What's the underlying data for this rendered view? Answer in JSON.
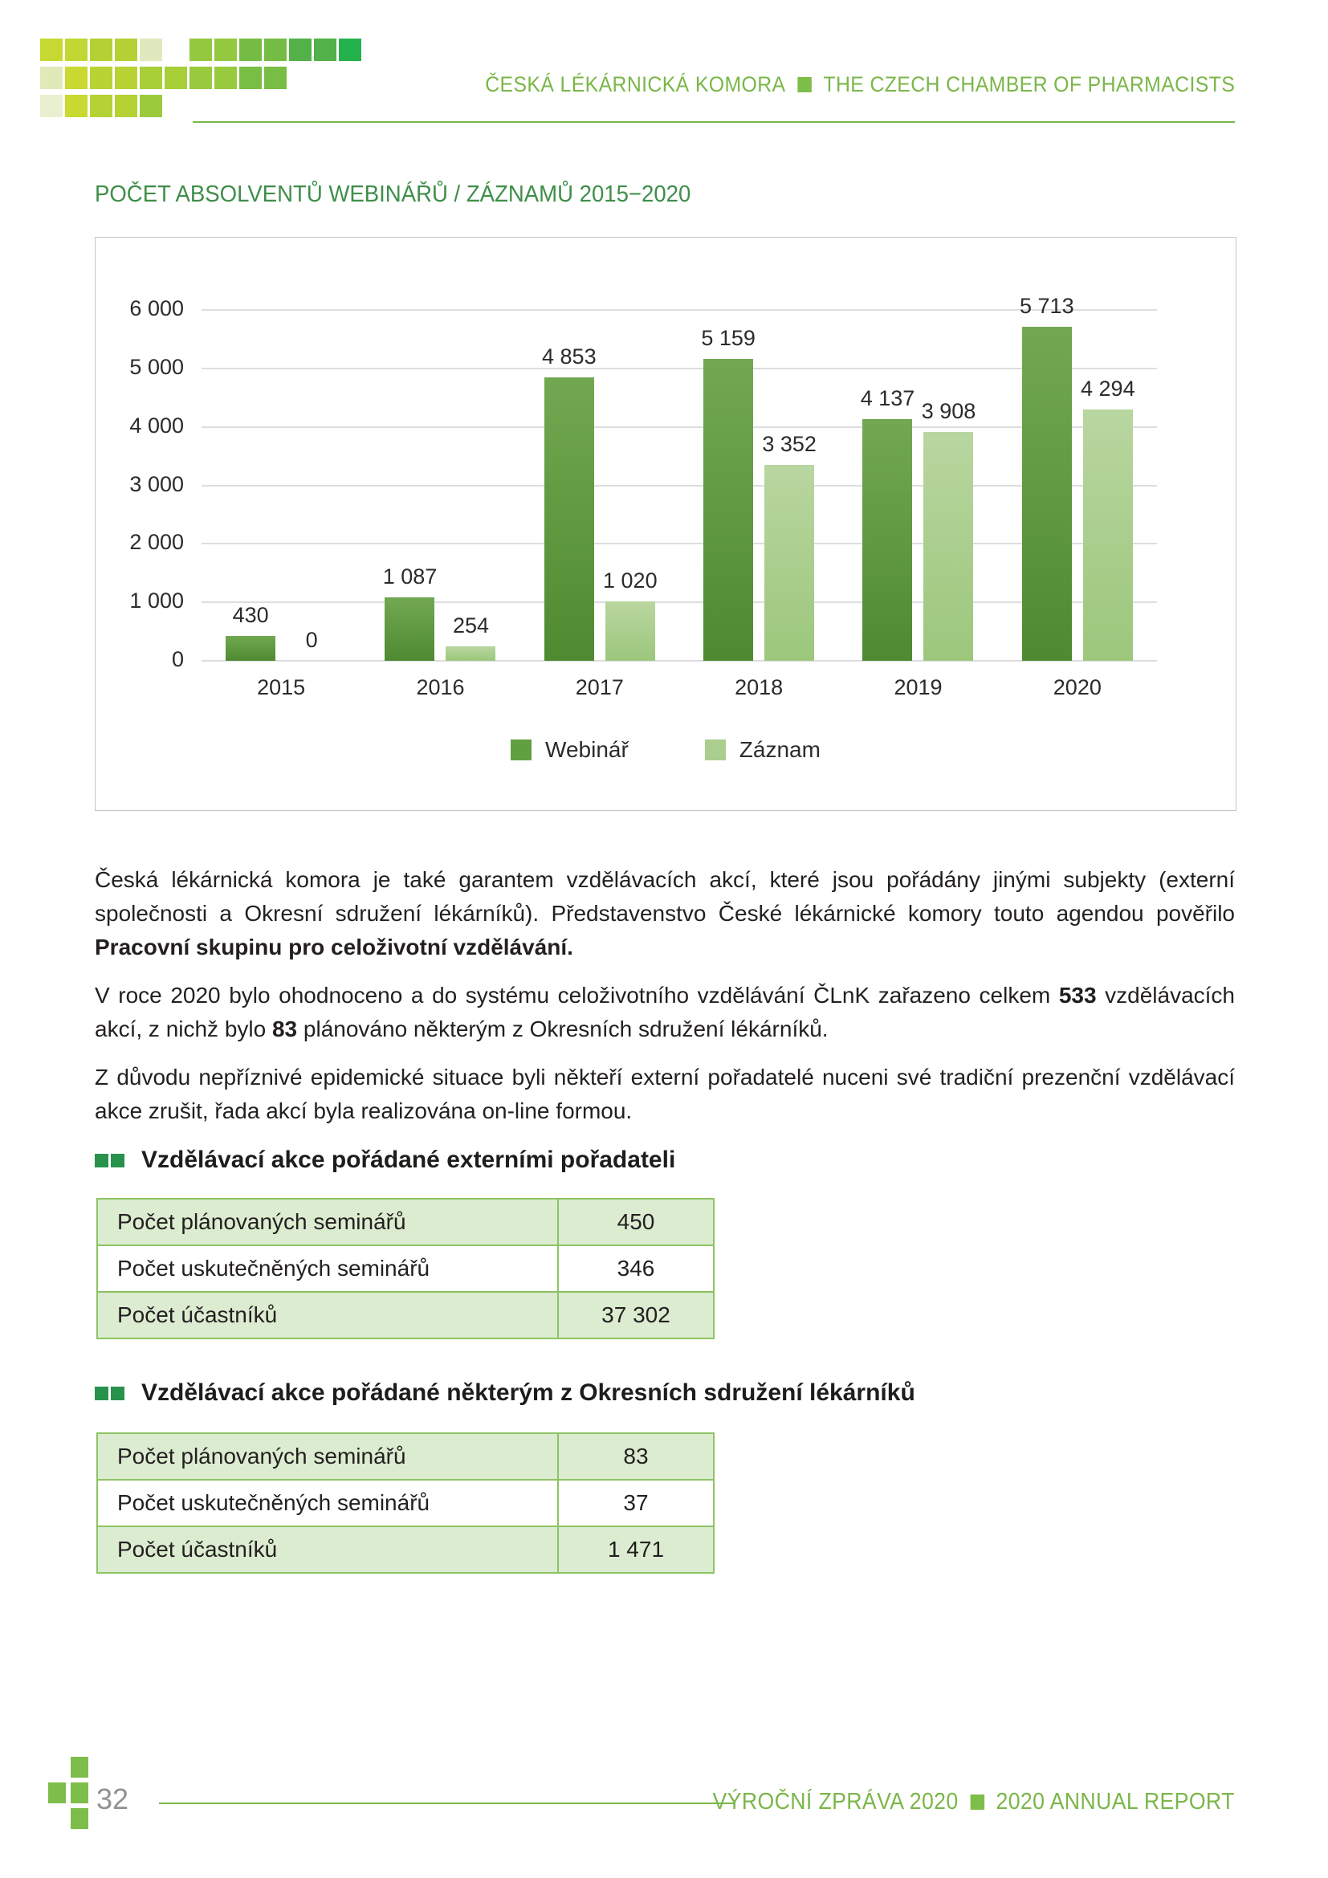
{
  "header": {
    "title_cs": "ČESKÁ LÉKÁRNICKÁ KOMORA",
    "separator": "■",
    "title_en": "THE CZECH CHAMBER OF PHARMACISTS"
  },
  "chart_title": "POČET ABSOLVENTŮ WEBINÁŘŮ / ZÁZNAMŮ 2015−2020",
  "chart_data": {
    "type": "bar",
    "title": "POČET ABSOLVENTŮ WEBINÁŘŮ / ZÁZNAMŮ 2015−2020",
    "categories": [
      "2015",
      "2016",
      "2017",
      "2018",
      "2019",
      "2020"
    ],
    "series": [
      {
        "name": "Webinář",
        "values": [
          430,
          1087,
          4853,
          5159,
          4137,
          5713
        ],
        "labels": [
          "430",
          "1 087",
          "4 853",
          "5 159",
          "4 137",
          "5 713"
        ],
        "color_top": "#72a851",
        "color_bottom": "#4e8a30",
        "legend_color": "#61a041"
      },
      {
        "name": "Záznam",
        "values": [
          0,
          254,
          1020,
          3352,
          3908,
          4294
        ],
        "labels": [
          "0",
          "254",
          "1 020",
          "3 352",
          "3 908",
          "4 294"
        ],
        "color_top": "#b9d6a0",
        "color_bottom": "#9cc77c",
        "legend_color": "#abce8e"
      }
    ],
    "ylim": [
      0,
      6000
    ],
    "ytick_step": 1000,
    "ytick_labels": [
      "0",
      "1 000",
      "2 000",
      "3 000",
      "4 000",
      "5 000",
      "6 000"
    ],
    "grid": true,
    "legend_position": "bottom"
  },
  "paragraphs": {
    "p1_normal": "Česká lékárnická komora je také garantem vzdělávacích akcí, které jsou pořádány jinými subjekty (externí společnosti a Okresní sdružení lékárníků). Představenstvo České lékárnické komory touto agendou pověřilo ",
    "p1_bold": "Pracovní skupinu pro celoživotní vzdělávání.",
    "p2_a": "V roce 2020 bylo ohodnoceno a do systému celoživotního vzdělávání ČLnK zařazeno celkem ",
    "p2_b1": "533",
    "p2_c": " vzdělávacích akcí, z nichž bylo ",
    "p2_b2": "83",
    "p2_d": " plánováno některým z Okresních sdružení lékárníků.",
    "p3": "Z důvodu nepříznivé epidemické situace byli někteří externí pořadatelé nuceni své tradiční prezenční vzdělávací akce zrušit, řada akcí byla realizována on-line formou."
  },
  "sections": [
    {
      "heading": "Vzdělávací akce pořádané externími pořadateli",
      "rows": [
        {
          "label": "Počet plánovaných seminářů",
          "value": "450"
        },
        {
          "label": "Počet uskutečněných seminářů",
          "value": "346"
        },
        {
          "label": "Počet účastníků",
          "value": "37 302"
        }
      ]
    },
    {
      "heading": "Vzdělávací akce pořádané některým z Okresních sdružení lékárníků",
      "rows": [
        {
          "label": "Počet plánovaných seminářů",
          "value": "83"
        },
        {
          "label": "Počet uskutečněných seminářů",
          "value": "37"
        },
        {
          "label": "Počet účastníků",
          "value": "1 471"
        }
      ]
    }
  ],
  "footer": {
    "page_number": "32",
    "title_cs": "VÝROČNÍ ZPRÁVA 2020",
    "separator": "■",
    "title_en": "2020 ANNUAL REPORT"
  },
  "colors": {
    "accent_green": "#7ab648",
    "accent_green_square": "#7dbe4a",
    "title_green": "#3e8e49",
    "heading_square_green": "#28924d",
    "table_border_green": "#8cc364",
    "table_row_green": "#dcecd0",
    "gridline_gray": "#dddde1",
    "chart_border_gray": "#c6c6c6",
    "page_number_gray": "#909295"
  },
  "logo_mosaic": {
    "origin_x": 50,
    "pitch": 31,
    "unit": 28,
    "rows": [
      {
        "y": 48,
        "squares": [
          [
            0,
            "#c6d932"
          ],
          [
            1,
            "#c2d734"
          ],
          [
            2,
            "#b3d135"
          ],
          [
            3,
            "#b3d135"
          ],
          [
            4,
            "#e0e9bd"
          ],
          [
            6,
            "#93c83f"
          ],
          [
            7,
            "#93c83f"
          ],
          [
            8,
            "#74bc44"
          ],
          [
            9,
            "#74bc44"
          ],
          [
            10,
            "#52b148"
          ],
          [
            11,
            "#52b148"
          ],
          [
            12,
            "#24b24d"
          ]
        ]
      },
      {
        "y": 83,
        "squares": [
          [
            0,
            "#e0e9b8"
          ],
          [
            1,
            "#c9d92f"
          ],
          [
            2,
            "#b9d334"
          ],
          [
            3,
            "#b9d334"
          ],
          [
            4,
            "#a8ce38"
          ],
          [
            5,
            "#a8ce38"
          ],
          [
            6,
            "#98ca3e"
          ],
          [
            7,
            "#98ca3e"
          ],
          [
            8,
            "#79be44"
          ],
          [
            9,
            "#79be44"
          ]
        ]
      },
      {
        "y": 118,
        "squares": [
          [
            0,
            "#e9f0d2"
          ],
          [
            1,
            "#c9d930"
          ],
          [
            2,
            "#b5d234"
          ],
          [
            3,
            "#b5d234"
          ],
          [
            4,
            "#9bcb3d"
          ]
        ]
      }
    ]
  }
}
